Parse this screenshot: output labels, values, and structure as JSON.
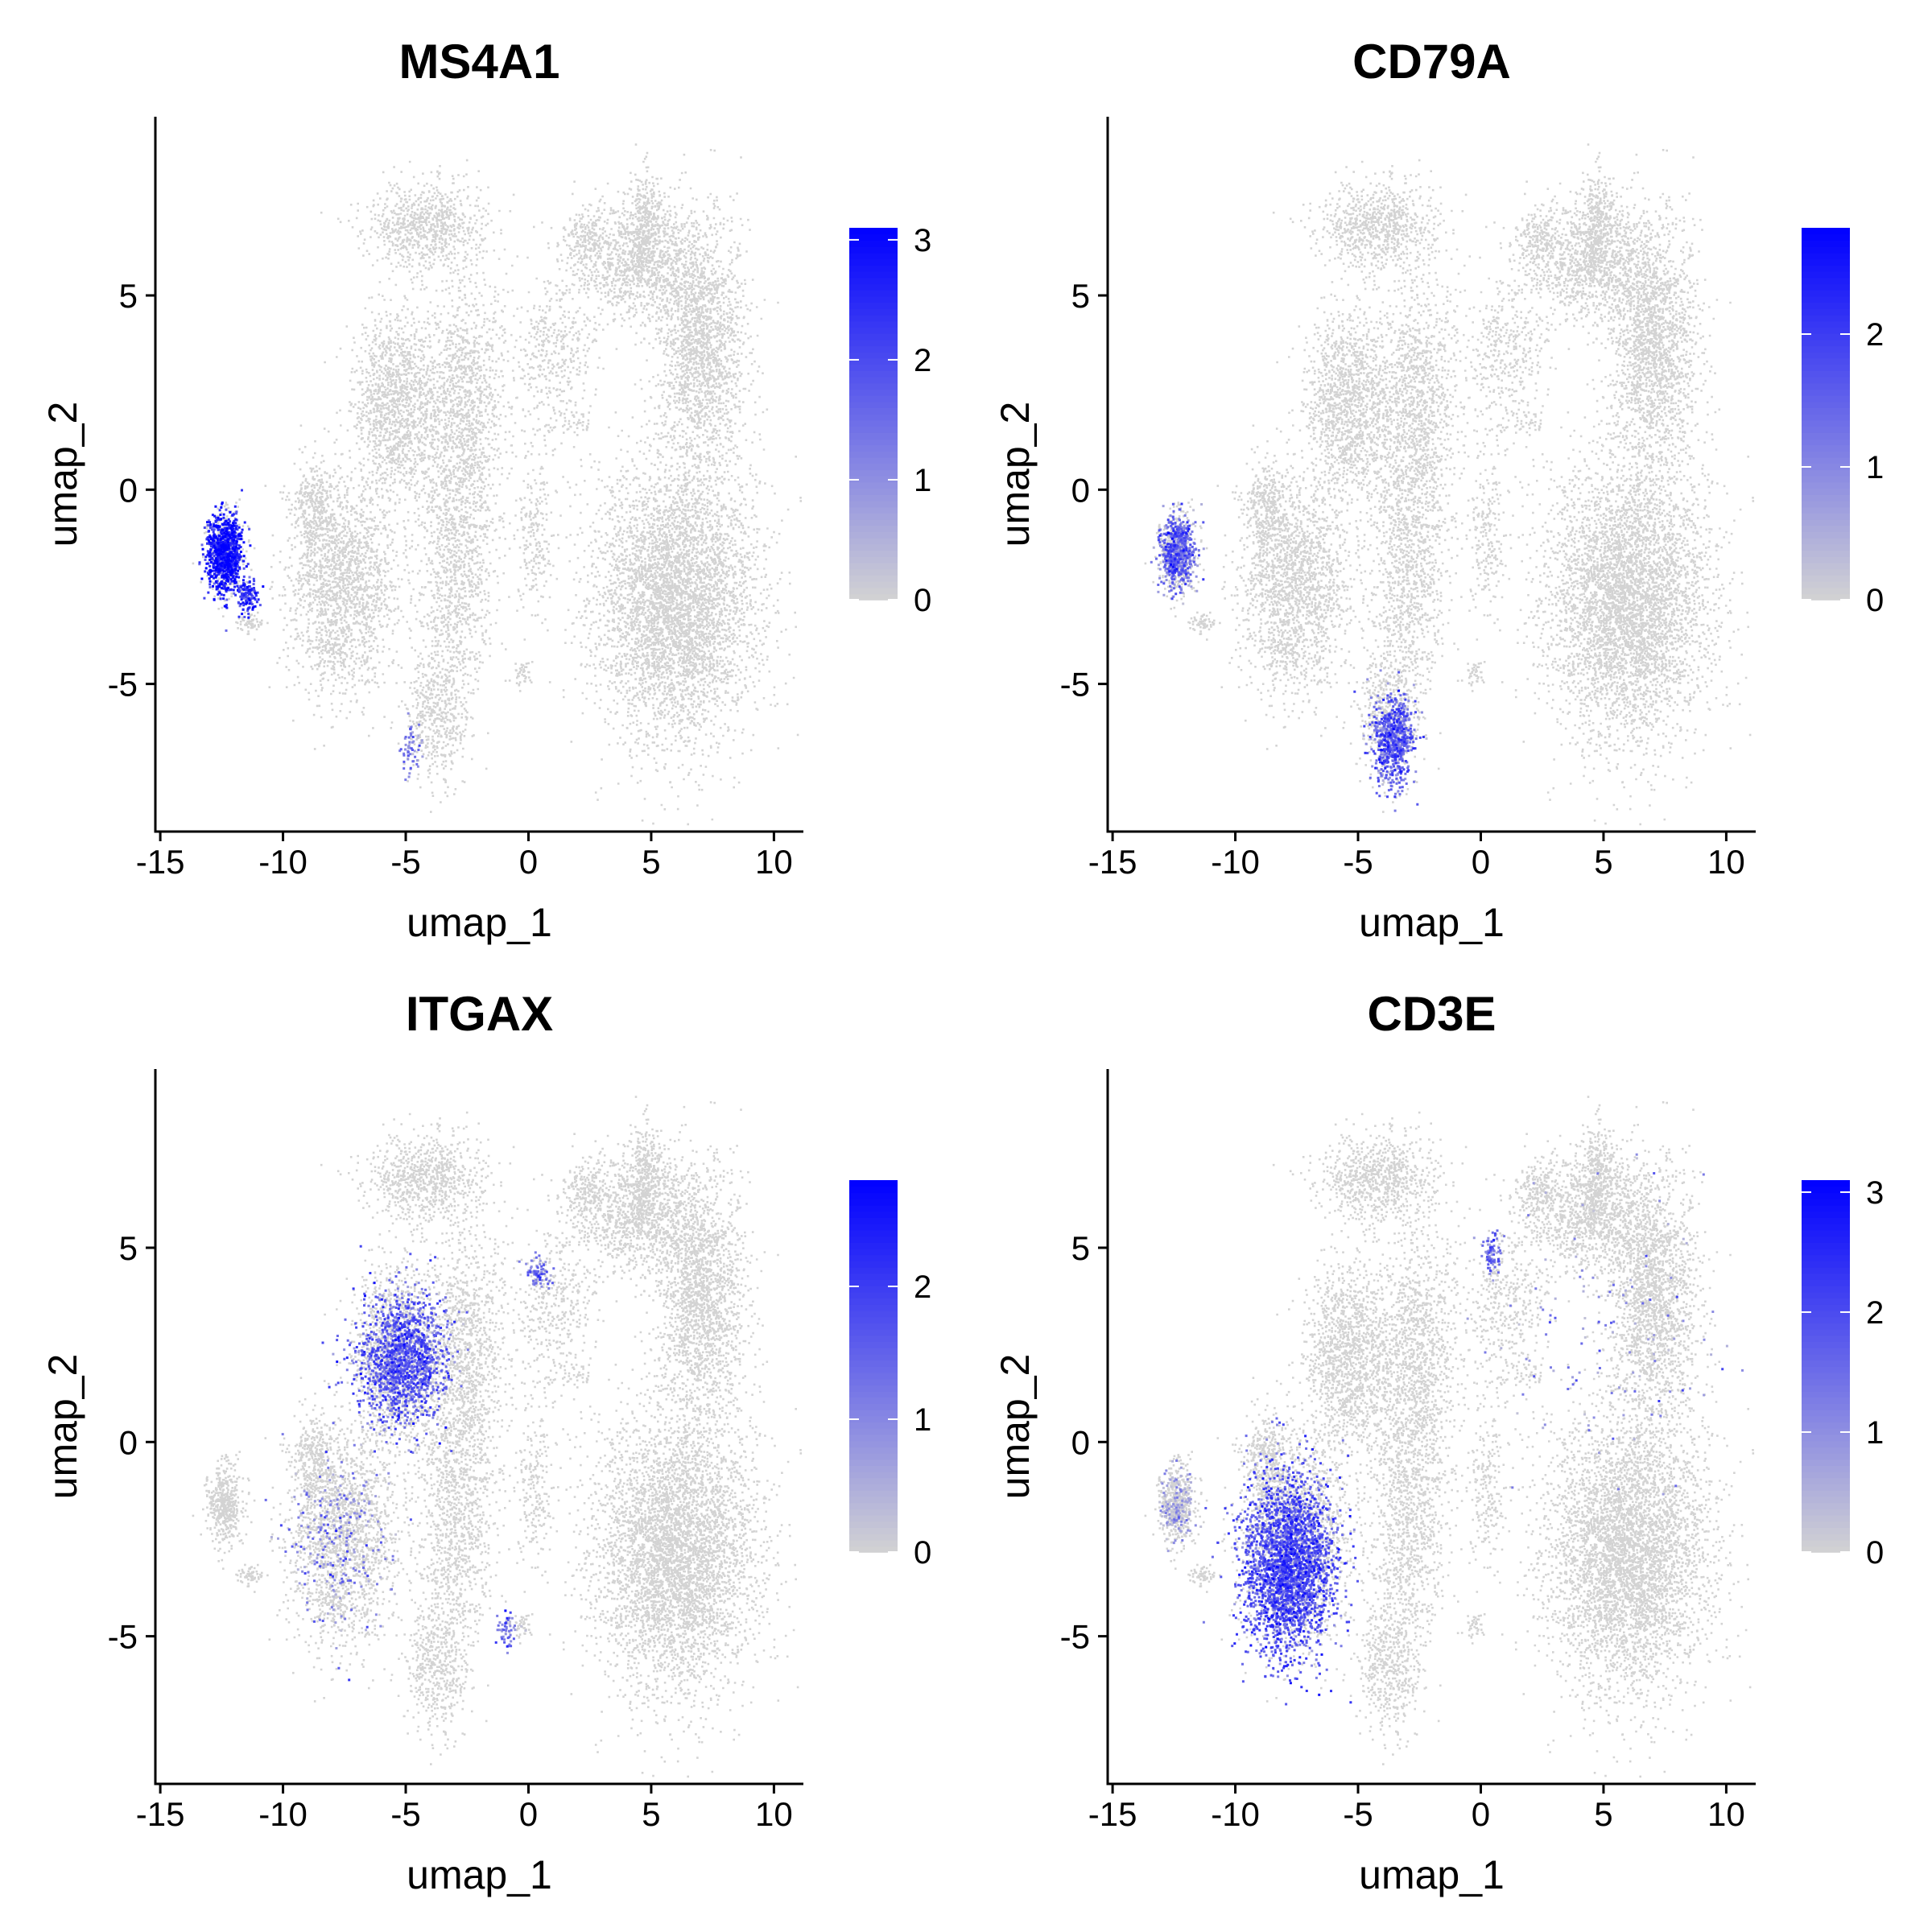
{
  "figure": {
    "colors": {
      "low": "#d3d3d3",
      "high": "#0000ff",
      "axis": "#000000"
    }
  },
  "chart_data": [
    {
      "type": "scatter",
      "title": "MS4A1",
      "xlabel": "umap_1",
      "ylabel": "umap_2",
      "xlim": [
        -15.2,
        11.2
      ],
      "ylim": [
        -8.8,
        9.6
      ],
      "xticks": [
        -15,
        -10,
        -5,
        0,
        5,
        10
      ],
      "xtick_labels": [
        "-15",
        "-10",
        "-5",
        "0",
        "5",
        "10"
      ],
      "yticks": [
        -5,
        0,
        5
      ],
      "ytick_labels": [
        "-5",
        "0",
        "5"
      ],
      "legend": {
        "min": 0,
        "max": 3.1,
        "ticks": [
          0,
          1,
          2,
          3
        ],
        "tick_labels": [
          "0",
          "1",
          "2",
          "3"
        ]
      },
      "hotspots": [
        {
          "x": -12.4,
          "y": -1.6,
          "sx": 0.5,
          "sy": 0.7,
          "level": 2.6,
          "n": 900
        },
        {
          "x": -11.5,
          "y": -2.7,
          "sx": 0.3,
          "sy": 0.3,
          "level": 2.2,
          "n": 120
        },
        {
          "x": -4.8,
          "y": -6.6,
          "sx": 0.3,
          "sy": 0.5,
          "level": 1.2,
          "n": 60
        }
      ]
    },
    {
      "type": "scatter",
      "title": "CD79A",
      "xlabel": "umap_1",
      "ylabel": "umap_2",
      "xlim": [
        -15.2,
        11.2
      ],
      "ylim": [
        -8.8,
        9.6
      ],
      "xticks": [
        -15,
        -10,
        -5,
        0,
        5,
        10
      ],
      "xtick_labels": [
        "-15",
        "-10",
        "-5",
        "0",
        "5",
        "10"
      ],
      "yticks": [
        -5,
        0,
        5
      ],
      "ytick_labels": [
        "-5",
        "0",
        "5"
      ],
      "legend": {
        "min": 0,
        "max": 2.8,
        "ticks": [
          0,
          1,
          2
        ],
        "tick_labels": [
          "0",
          "1",
          "2"
        ]
      },
      "hotspots": [
        {
          "x": -12.4,
          "y": -1.6,
          "sx": 0.5,
          "sy": 0.7,
          "level": 1.3,
          "n": 600
        },
        {
          "x": -3.6,
          "y": -6.4,
          "sx": 0.6,
          "sy": 0.8,
          "level": 1.4,
          "n": 700
        }
      ]
    },
    {
      "type": "scatter",
      "title": "ITGAX",
      "xlabel": "umap_1",
      "ylabel": "umap_2",
      "xlim": [
        -15.2,
        11.2
      ],
      "ylim": [
        -8.8,
        9.6
      ],
      "xticks": [
        -15,
        -10,
        -5,
        0,
        5,
        10
      ],
      "xtick_labels": [
        "-15",
        "-10",
        "-5",
        "0",
        "5",
        "10"
      ],
      "yticks": [
        -5,
        0,
        5
      ],
      "ytick_labels": [
        "-5",
        "0",
        "5"
      ],
      "legend": {
        "min": 0,
        "max": 2.8,
        "ticks": [
          0,
          1,
          2
        ],
        "tick_labels": [
          "0",
          "1",
          "2"
        ]
      },
      "hotspots": [
        {
          "x": -5.2,
          "y": 2.2,
          "sx": 1.3,
          "sy": 1.2,
          "level": 1.5,
          "n": 1400
        },
        {
          "x": -7.8,
          "y": -2.4,
          "sx": 1.4,
          "sy": 1.6,
          "level": 1.1,
          "n": 250
        },
        {
          "x": 0.4,
          "y": 4.4,
          "sx": 0.4,
          "sy": 0.3,
          "level": 1.3,
          "n": 70
        },
        {
          "x": -0.9,
          "y": -4.8,
          "sx": 0.3,
          "sy": 0.3,
          "level": 1.2,
          "n": 50
        }
      ]
    },
    {
      "type": "scatter",
      "title": "CD3E",
      "xlabel": "umap_1",
      "ylabel": "umap_2",
      "xlim": [
        -15.2,
        11.2
      ],
      "ylim": [
        -8.8,
        9.6
      ],
      "xticks": [
        -15,
        -10,
        -5,
        0,
        5,
        10
      ],
      "xtick_labels": [
        "-15",
        "-10",
        "-5",
        "0",
        "5",
        "10"
      ],
      "yticks": [
        -5,
        0,
        5
      ],
      "ytick_labels": [
        "-5",
        "0",
        "5"
      ],
      "legend": {
        "min": 0,
        "max": 3.1,
        "ticks": [
          0,
          1,
          2,
          3
        ],
        "tick_labels": [
          "0",
          "1",
          "2",
          "3"
        ]
      },
      "hotspots": [
        {
          "x": -7.9,
          "y": -3.1,
          "sx": 1.3,
          "sy": 1.6,
          "level": 1.8,
          "n": 2600
        },
        {
          "x": -12.4,
          "y": -1.6,
          "sx": 0.5,
          "sy": 0.7,
          "level": 0.6,
          "n": 150
        },
        {
          "x": 0.4,
          "y": 4.9,
          "sx": 0.3,
          "sy": 0.4,
          "level": 1.4,
          "n": 80
        },
        {
          "x": 5.0,
          "y": 3.0,
          "sx": 3.0,
          "sy": 3.0,
          "level": 1.1,
          "n": 120
        }
      ]
    }
  ]
}
